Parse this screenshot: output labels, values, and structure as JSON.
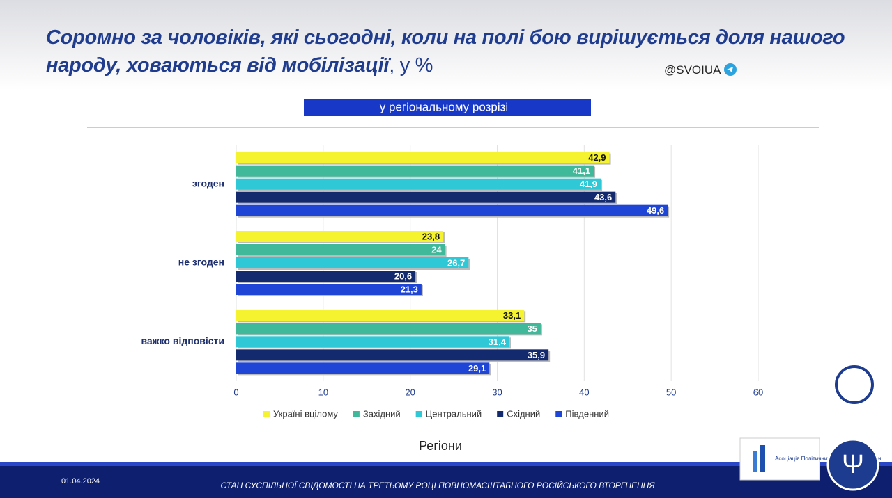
{
  "chart_data": {
    "type": "hbar",
    "title": "Соромно за чоловіків, які сьогодні, коли на полі бою вирішується доля нашого народу, ховаються від мобілізації",
    "title_unit": ", у %",
    "subtitle": "у регіональному розрізі",
    "xlabel": "Регіони",
    "categories": [
      "згоден",
      "не згоден",
      "важко відповісти"
    ],
    "series": [
      {
        "name": "Україні вцілому",
        "color": "#f5f230",
        "values": [
          42.9,
          23.8,
          33.1
        ],
        "value_labels": [
          "42,9",
          "23,8",
          "33,1"
        ]
      },
      {
        "name": "Західний",
        "color": "#3fb99a",
        "values": [
          41.1,
          24,
          35
        ],
        "value_labels": [
          "41,1",
          "24",
          "35"
        ]
      },
      {
        "name": "Центральний",
        "color": "#2ec8d6",
        "values": [
          41.9,
          26.7,
          31.4
        ],
        "value_labels": [
          "41,9",
          "26,7",
          "31,4"
        ]
      },
      {
        "name": "Східний",
        "color": "#142a6e",
        "values": [
          43.6,
          20.6,
          35.9
        ],
        "value_labels": [
          "43,6",
          "20,6",
          "35,9"
        ]
      },
      {
        "name": "Південний",
        "color": "#1f45d6",
        "values": [
          49.6,
          21.3,
          29.1
        ],
        "value_labels": [
          "49,6",
          "21,3",
          "29,1"
        ]
      }
    ],
    "xlim": [
      0,
      60
    ],
    "xticks": [
      0,
      10,
      20,
      30,
      40,
      50,
      60
    ],
    "grid": true,
    "legend": "bottom"
  },
  "watermark": "@SVOIUA",
  "footer": {
    "date": "01.04.2024",
    "text": "СТАН СУСПІЛЬНОЇ СВІДОМОСТІ НА ТРЕТЬОМУ РОЦІ ПОВНОМАСШТАБНОГО РОСІЙСЬКОГО ВТОРГНЕННЯ"
  },
  "logo": "Асоціація Політичних Психологів України"
}
